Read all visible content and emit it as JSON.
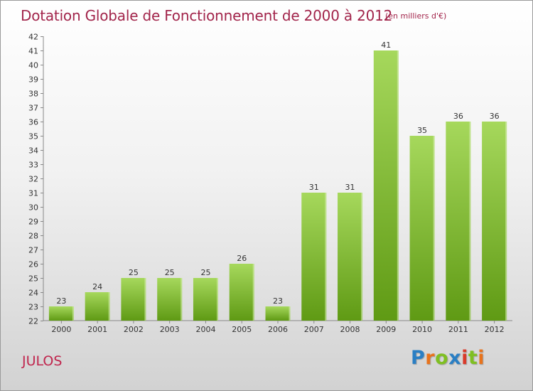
{
  "title": "Dotation Globale de Fonctionnement de 2000 à 2012",
  "unit_note": "(en milliers d'€)",
  "commune": "JULOS",
  "logo": {
    "text": "Proxiti",
    "letters": [
      "P",
      "r",
      "o",
      "x",
      "i",
      "t",
      "i"
    ]
  },
  "colors": {
    "bar_light": "#a6d85c",
    "bar_dark": "#5f9a14",
    "title": "#a2254b",
    "commune": "#c0254d"
  },
  "chart_data": {
    "type": "bar",
    "title": "Dotation Globale de Fonctionnement de 2000 à 2012",
    "categories": [
      "2000",
      "2001",
      "2002",
      "2003",
      "2004",
      "2005",
      "2006",
      "2007",
      "2008",
      "2009",
      "2010",
      "2011",
      "2012"
    ],
    "values": [
      23,
      24,
      25,
      25,
      25,
      26,
      23,
      31,
      31,
      41,
      35,
      36,
      36
    ],
    "data_labels": [
      "23",
      "24",
      "25",
      "25",
      "25",
      "26",
      "23",
      "31",
      "31",
      "41",
      "35",
      "36",
      "36"
    ],
    "y_ticks": [
      "22",
      "23",
      "24",
      "25",
      "26",
      "27",
      "28",
      "29",
      "30",
      "31",
      "32",
      "33",
      "34",
      "35",
      "36",
      "37",
      "38",
      "39",
      "40",
      "41",
      "42"
    ],
    "ylim": [
      22,
      42
    ],
    "grid": false,
    "legend": "none"
  }
}
